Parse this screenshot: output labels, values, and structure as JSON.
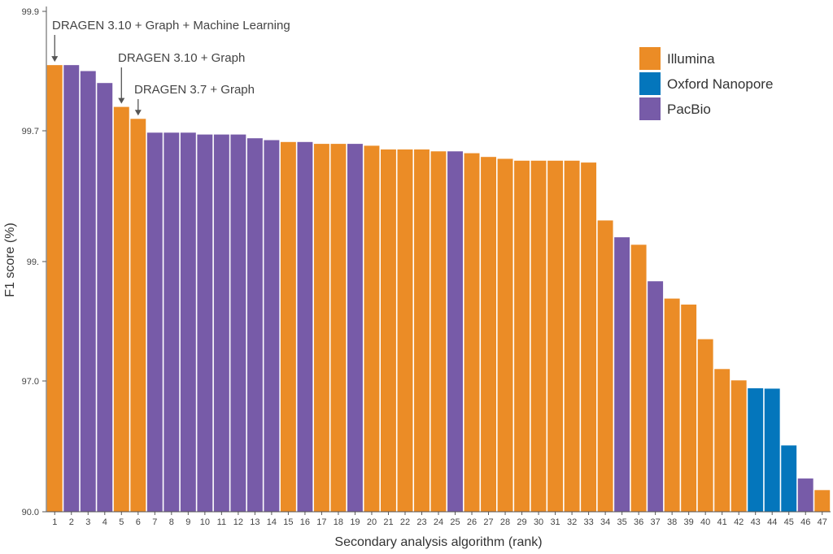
{
  "chart_data": {
    "type": "bar",
    "xlabel": "Secondary analysis algorithm (rank)",
    "ylabel": "F1 score (%)",
    "y_axis_scale": "non-linear (labelled ticks at 90.0, 97.0, 99., 99.7, 99.9)",
    "y_ticks": [
      {
        "label": "99.9",
        "value": 99.9
      },
      {
        "label": "99.7",
        "value": 99.7
      },
      {
        "label": "99.",
        "value": 99.0
      },
      {
        "label": "97.0",
        "value": 97.0
      },
      {
        "label": "90.0",
        "value": 90.0
      }
    ],
    "ylim": [
      90.0,
      99.9
    ],
    "grid": false,
    "legend": {
      "position": "top-right",
      "items": [
        {
          "name": "Illumina",
          "color": "#EB8C26"
        },
        {
          "name": "Oxford Nanopore",
          "color": "#0476BC"
        },
        {
          "name": "PacBio",
          "color": "#775BA8"
        }
      ]
    },
    "categories": [
      "1",
      "2",
      "3",
      "4",
      "5",
      "6",
      "7",
      "8",
      "9",
      "10",
      "11",
      "12",
      "13",
      "14",
      "15",
      "16",
      "17",
      "18",
      "19",
      "20",
      "21",
      "22",
      "23",
      "24",
      "25",
      "26",
      "27",
      "28",
      "29",
      "30",
      "31",
      "32",
      "33",
      "34",
      "35",
      "36",
      "37",
      "38",
      "39",
      "40",
      "41",
      "42",
      "43",
      "44",
      "45",
      "46",
      "47"
    ],
    "platforms": [
      "Illumina",
      "PacBio",
      "PacBio",
      "PacBio",
      "Illumina",
      "Illumina",
      "PacBio",
      "PacBio",
      "PacBio",
      "PacBio",
      "PacBio",
      "PacBio",
      "PacBio",
      "PacBio",
      "Illumina",
      "PacBio",
      "Illumina",
      "Illumina",
      "PacBio",
      "Illumina",
      "Illumina",
      "Illumina",
      "Illumina",
      "Illumina",
      "PacBio",
      "Illumina",
      "Illumina",
      "Illumina",
      "Illumina",
      "Illumina",
      "Illumina",
      "Illumina",
      "Illumina",
      "Illumina",
      "PacBio",
      "Illumina",
      "PacBio",
      "Illumina",
      "Illumina",
      "Illumina",
      "Illumina",
      "Illumina",
      "Oxford Nanopore",
      "Oxford Nanopore",
      "Oxford Nanopore",
      "PacBio",
      "Illumina"
    ],
    "values": [
      99.81,
      99.81,
      99.8,
      99.78,
      99.74,
      99.72,
      99.69,
      99.69,
      99.69,
      99.68,
      99.68,
      99.68,
      99.66,
      99.65,
      99.64,
      99.64,
      99.63,
      99.63,
      99.63,
      99.62,
      99.6,
      99.6,
      99.6,
      99.59,
      99.59,
      99.58,
      99.56,
      99.55,
      99.54,
      99.54,
      99.54,
      99.54,
      99.53,
      99.22,
      99.13,
      99.09,
      98.67,
      98.38,
      98.28,
      97.7,
      97.2,
      97.01,
      96.61,
      96.59,
      93.55,
      91.78,
      91.16
    ],
    "annotations": [
      {
        "text": "DRAGEN 3.10 + Graph + Machine Learning",
        "rank": 1
      },
      {
        "text": "DRAGEN 3.10 + Graph",
        "rank": 5
      },
      {
        "text": "DRAGEN 3.7 + Graph",
        "rank": 6
      }
    ]
  }
}
